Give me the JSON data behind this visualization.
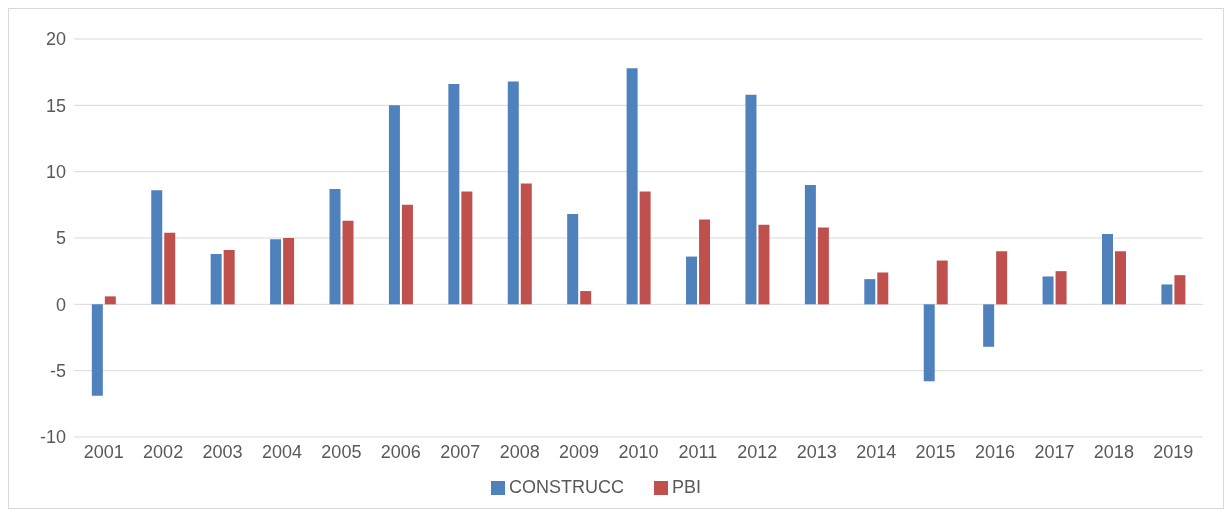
{
  "chart_data": {
    "type": "bar",
    "categories": [
      "2001",
      "2002",
      "2003",
      "2004",
      "2005",
      "2006",
      "2007",
      "2008",
      "2009",
      "2010",
      "2011",
      "2012",
      "2013",
      "2014",
      "2015",
      "2016",
      "2017",
      "2018",
      "2019"
    ],
    "series": [
      {
        "name": "CONSTRUCC",
        "color": "#4f81bd",
        "values": [
          -6.9,
          8.6,
          3.8,
          4.9,
          8.7,
          15.0,
          16.6,
          16.8,
          6.8,
          17.8,
          3.6,
          15.8,
          9.0,
          1.9,
          -5.8,
          -3.2,
          2.1,
          5.3,
          1.5
        ]
      },
      {
        "name": "PBI",
        "color": "#c0504d",
        "values": [
          0.6,
          5.4,
          4.1,
          5.0,
          6.3,
          7.5,
          8.5,
          9.1,
          1.0,
          8.5,
          6.4,
          6.0,
          5.8,
          2.4,
          3.3,
          4.0,
          2.5,
          4.0,
          2.2
        ]
      }
    ],
    "ylim": [
      -10,
      20
    ],
    "yticks": [
      -10,
      -5,
      0,
      5,
      10,
      15,
      20
    ],
    "grid": "y",
    "legend": "bottom"
  }
}
